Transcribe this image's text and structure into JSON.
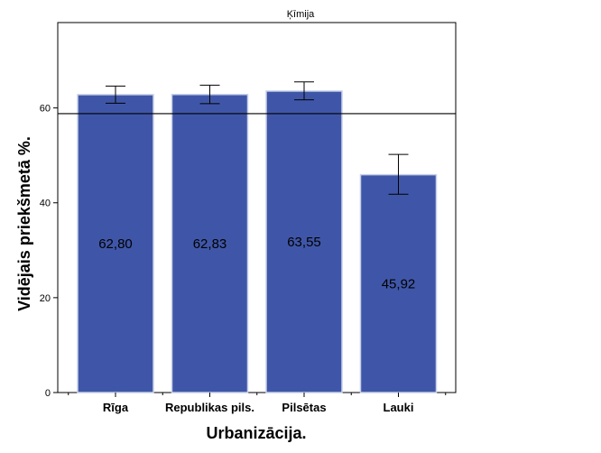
{
  "chart_data": {
    "type": "bar",
    "title": "Ķīmija",
    "xlabel": "Urbanizācija.",
    "ylabel": "Vidējais priekšmetā %.",
    "categories": [
      "Rīga",
      "Republikas pils.",
      "Pilsētas",
      "Lauki"
    ],
    "values": [
      62.8,
      62.83,
      63.55,
      45.92
    ],
    "value_labels": [
      "62,80",
      "62,83",
      "63,55",
      "45,92"
    ],
    "error_low": [
      61.0,
      60.9,
      61.7,
      41.8
    ],
    "error_high": [
      64.6,
      64.8,
      65.5,
      50.2
    ],
    "reference_line": 58.8,
    "ylim": [
      0,
      78
    ],
    "yticks": [
      0,
      20,
      40,
      60
    ],
    "ytick_labels": [
      "0",
      "20",
      "40",
      "60"
    ],
    "grid": false,
    "legend": "none",
    "bar_color": "#3f56a8",
    "bar_edge_color": "#c8d0e8"
  }
}
